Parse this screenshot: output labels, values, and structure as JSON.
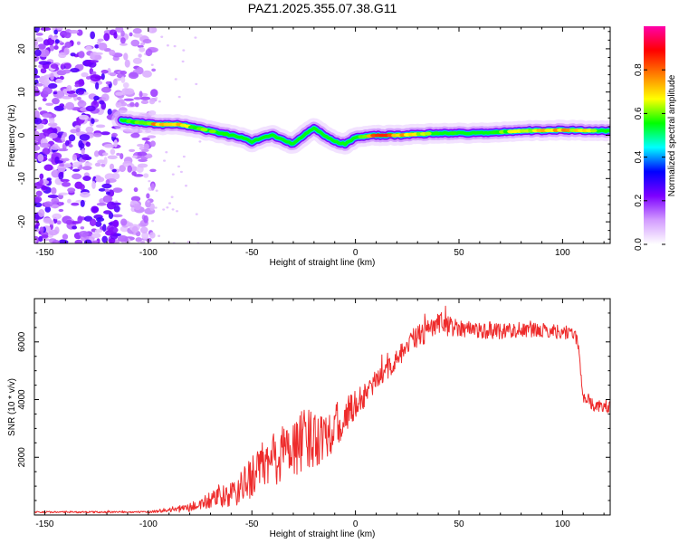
{
  "figure": {
    "title": "PAZ1.2025.355.07.38.G11"
  },
  "chart_data": [
    {
      "type": "heatmap",
      "name": "spectrogram",
      "xlabel": "Height of straight line (km)",
      "ylabel": "Frequency (Hz)",
      "xlim": [
        -155,
        123
      ],
      "ylim": [
        -25,
        25
      ],
      "xticks": [
        -150,
        -100,
        -50,
        0,
        50,
        100
      ],
      "yticks": [
        -20,
        -10,
        0,
        10,
        20
      ],
      "ridge_x": [
        -113,
        -105,
        -95,
        -85,
        -75,
        -65,
        -55,
        -50,
        -45,
        -40,
        -35,
        -30,
        -25,
        -20,
        -15,
        -10,
        -5,
        0,
        10,
        20,
        40,
        60,
        80,
        100,
        123
      ],
      "ridge_freq": [
        3.5,
        3,
        2.5,
        2.5,
        1.5,
        0.5,
        -0.5,
        -1.5,
        -0.5,
        0,
        -1,
        -2,
        0,
        1.8,
        0,
        -1.5,
        -2,
        -0.5,
        0,
        0,
        0.5,
        0.5,
        1,
        1.2,
        1
      ],
      "ridge_amplitude": [
        0.45,
        0.6,
        0.75,
        0.7,
        0.6,
        0.5,
        0.45,
        0.4,
        0.45,
        0.4,
        0.45,
        0.4,
        0.4,
        0.5,
        0.45,
        0.4,
        0.4,
        0.45,
        0.9,
        0.75,
        0.5,
        0.5,
        0.65,
        0.75,
        0.5
      ],
      "noise_region_x": [
        -155,
        -105
      ]
    },
    {
      "type": "colorbar",
      "name": "amplitude-colorbar",
      "label": "Normalized spectral amplitude",
      "range": [
        0,
        1
      ],
      "ticks": [
        "0.0",
        "0.2",
        "0.4",
        "0.6",
        "0.8"
      ],
      "colors": [
        "#ffffff",
        "#d39cff",
        "#7d00ff",
        "#0000ff",
        "#00ffff",
        "#00ff00",
        "#ffff00",
        "#ff7f00",
        "#ff0000",
        "#ff00aa"
      ]
    },
    {
      "type": "line",
      "name": "snr",
      "xlabel": "Height of straight line (km)",
      "ylabel": "SNR (10 * v/v)",
      "xlim": [
        -155,
        123
      ],
      "ylim": [
        0,
        7500
      ],
      "xticks": [
        -150,
        -100,
        -50,
        0,
        50,
        100
      ],
      "yticks": [
        2000,
        4000,
        6000
      ],
      "color": "#ee2b2b",
      "envelope_x": [
        -155,
        -100,
        -80,
        -70,
        -60,
        -55,
        -50,
        -40,
        -30,
        -20,
        -10,
        0,
        10,
        20,
        30,
        40,
        50,
        60,
        70,
        80,
        90,
        100,
        106,
        108,
        110,
        115,
        123
      ],
      "envelope_y": [
        100,
        100,
        250,
        500,
        700,
        900,
        1400,
        1900,
        2400,
        2700,
        3000,
        3800,
        4600,
        5400,
        6200,
        6600,
        6500,
        6400,
        6400,
        6400,
        6400,
        6350,
        6300,
        5600,
        4100,
        3800,
        3700
      ],
      "noise_amplitude_y": [
        30,
        30,
        150,
        300,
        450,
        600,
        800,
        1000,
        1100,
        1100,
        800,
        500,
        350,
        350,
        450,
        400,
        300,
        300,
        300,
        250,
        250,
        250,
        250,
        250,
        200,
        200,
        200
      ]
    }
  ]
}
